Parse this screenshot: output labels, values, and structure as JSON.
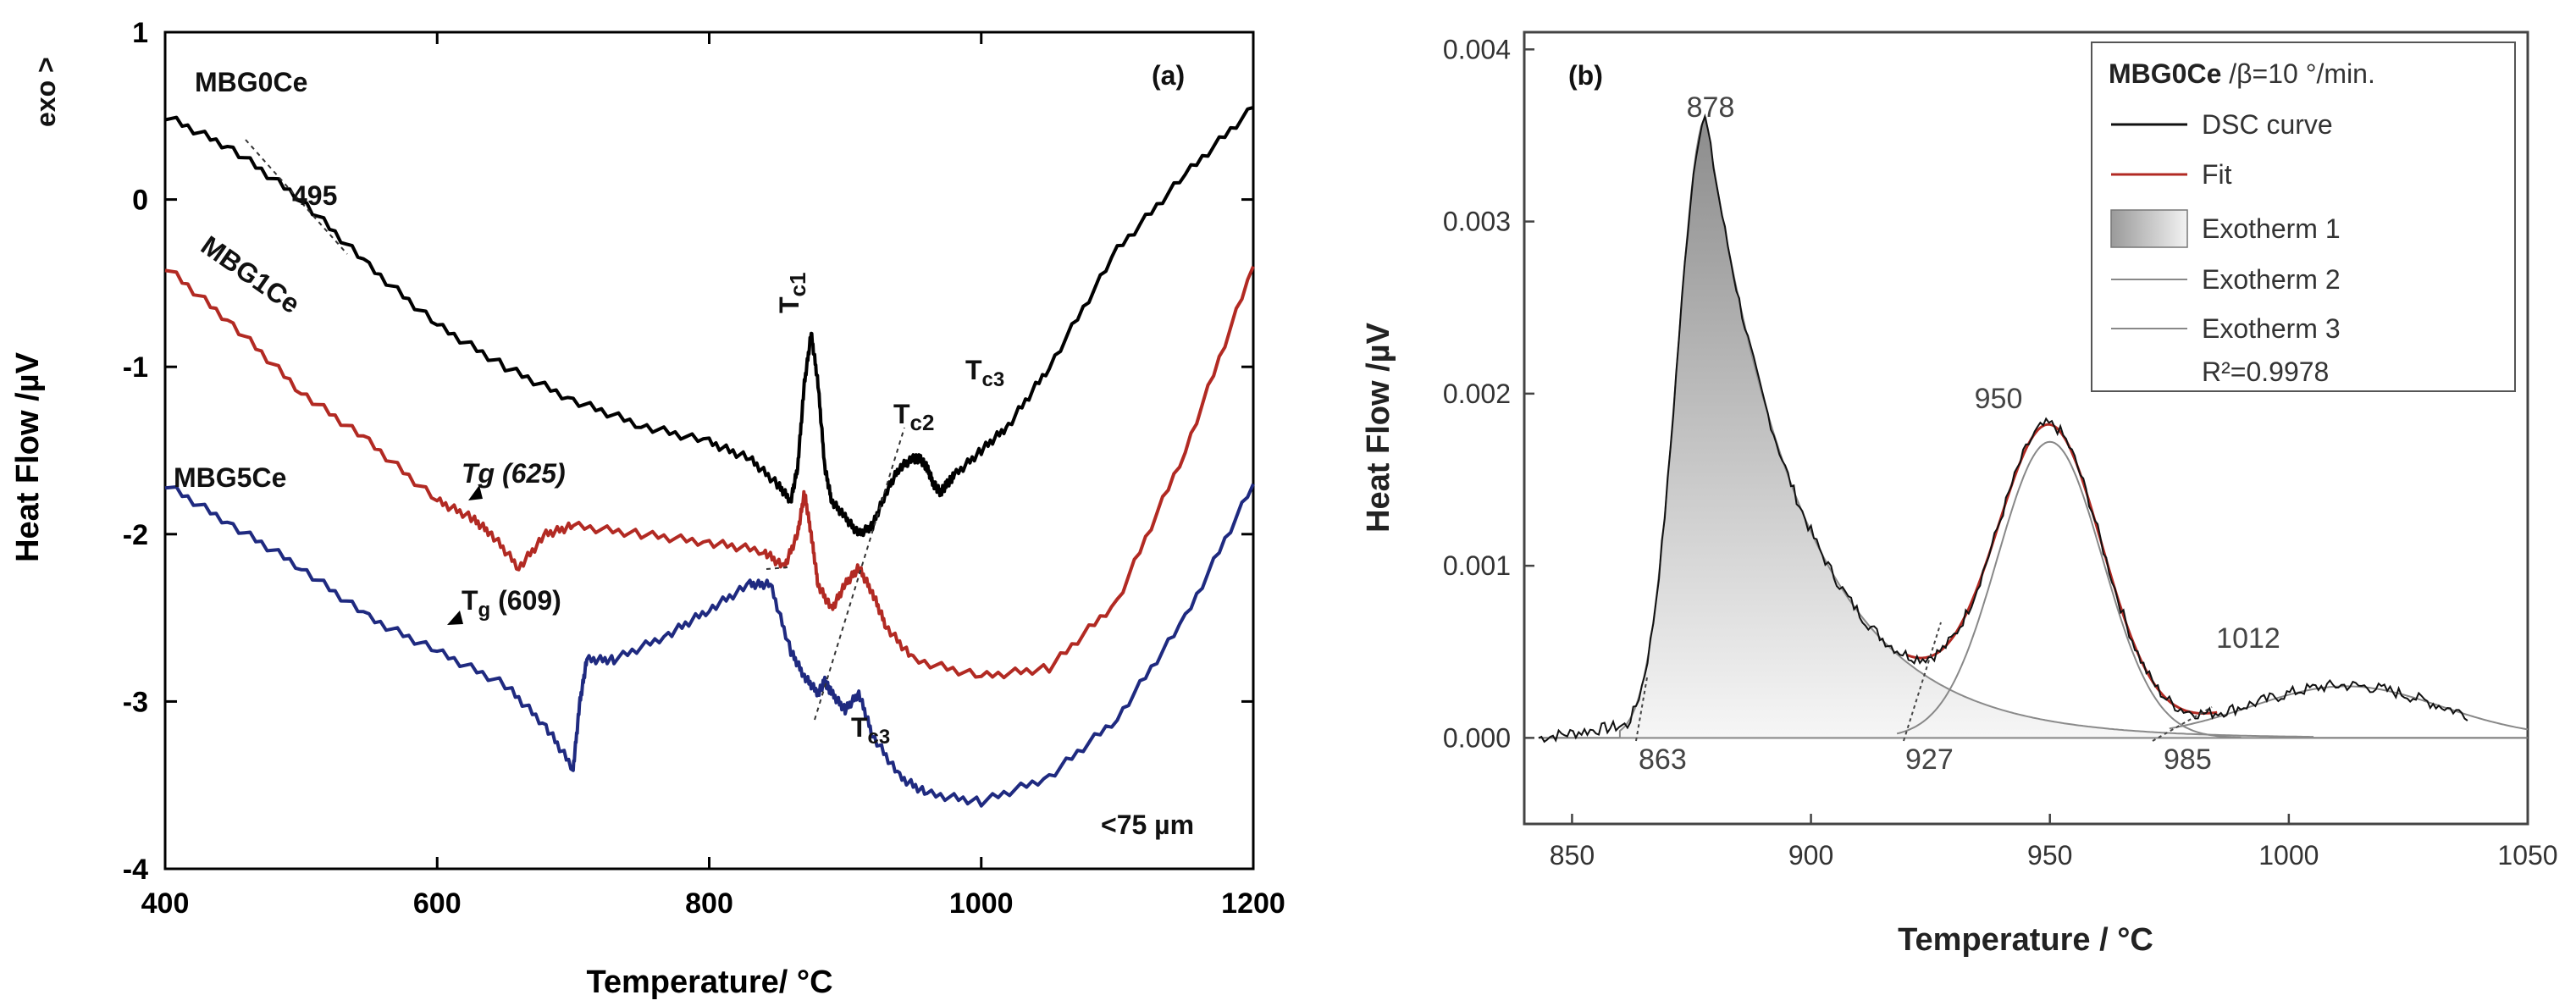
{
  "chart_data": [
    {
      "panel": "(a)",
      "type": "line",
      "title": "",
      "xlabel": "Temperature/ °C",
      "ylabel": "Heat Flow /µV",
      "exo_label": "exo >",
      "xlim": [
        400,
        1200
      ],
      "ylim": [
        -4,
        1
      ],
      "xticks": [
        400,
        600,
        800,
        1000,
        1200
      ],
      "yticks": [
        -4,
        -3,
        -2,
        -1,
        0,
        1
      ],
      "size_note": "<75 µm",
      "series": [
        {
          "name": "MBG0Ce",
          "color": "#000000",
          "x": [
            400,
            450,
            500,
            550,
            600,
            650,
            700,
            750,
            800,
            830,
            850,
            860,
            865,
            870,
            875,
            880,
            885,
            890,
            900,
            910,
            920,
            930,
            940,
            950,
            955,
            960,
            965,
            970,
            975,
            980,
            1000,
            1020,
            1050,
            1100,
            1150,
            1200
          ],
          "values": [
            0.5,
            0.3,
            0.0,
            -0.4,
            -0.75,
            -1.0,
            -1.2,
            -1.35,
            -1.45,
            -1.55,
            -1.7,
            -1.8,
            -1.6,
            -1.1,
            -0.8,
            -1.1,
            -1.6,
            -1.8,
            -1.9,
            -2.0,
            -1.95,
            -1.75,
            -1.6,
            -1.55,
            -1.55,
            -1.6,
            -1.7,
            -1.75,
            -1.7,
            -1.65,
            -1.5,
            -1.35,
            -1.0,
            -0.3,
            0.15,
            0.55
          ]
        },
        {
          "name": "MBG1Ce",
          "color": "#b22a23",
          "x": [
            400,
            450,
            500,
            550,
            600,
            625,
            640,
            660,
            680,
            700,
            750,
            800,
            840,
            855,
            865,
            870,
            875,
            880,
            890,
            900,
            910,
            920,
            930,
            950,
            1000,
            1050,
            1100,
            1150,
            1200
          ],
          "values": [
            -0.4,
            -0.75,
            -1.15,
            -1.45,
            -1.8,
            -1.9,
            -2.0,
            -2.2,
            -2.0,
            -1.95,
            -2.0,
            -2.05,
            -2.1,
            -2.2,
            -2.0,
            -1.75,
            -2.0,
            -2.3,
            -2.45,
            -2.3,
            -2.2,
            -2.35,
            -2.55,
            -2.75,
            -2.85,
            -2.8,
            -2.4,
            -1.5,
            -0.4
          ]
        },
        {
          "name": "MBG5Ce",
          "color": "#1f2a80",
          "x": [
            400,
            450,
            500,
            550,
            600,
            650,
            680,
            700,
            705,
            710,
            730,
            770,
            800,
            830,
            845,
            860,
            870,
            880,
            885,
            890,
            900,
            910,
            920,
            940,
            960,
            1000,
            1050,
            1100,
            1150,
            1200
          ],
          "values": [
            -1.7,
            -1.95,
            -2.2,
            -2.5,
            -2.7,
            -2.9,
            -3.15,
            -3.4,
            -3.0,
            -2.75,
            -2.75,
            -2.6,
            -2.45,
            -2.3,
            -2.3,
            -2.7,
            -2.85,
            -2.95,
            -2.88,
            -2.95,
            -3.05,
            -2.95,
            -3.2,
            -3.45,
            -3.55,
            -3.6,
            -3.45,
            -3.1,
            -2.5,
            -1.7
          ]
        }
      ],
      "annotations": [
        {
          "text": "495",
          "x": 520,
          "y": 0.0
        },
        {
          "text": "Tg (625)",
          "x": 625,
          "y": -1.55
        },
        {
          "text": "T",
          "sub": "g",
          "tail": " (609)",
          "x": 609,
          "y": -2.35
        },
        {
          "text": "T",
          "sub": "c1",
          "x": 875,
          "y": -0.3
        },
        {
          "text": "T",
          "sub": "c2",
          "x": 950,
          "y": -1.25
        },
        {
          "text": "T",
          "sub": "c3",
          "x": 1015,
          "y": -1.05
        },
        {
          "text": "T",
          "sub": "c3",
          "x": 905,
          "y": -3.15
        }
      ]
    },
    {
      "panel": "(b)",
      "type": "line",
      "title": "",
      "xlabel": "Temperature / °C",
      "ylabel": "Heat Flow /µV",
      "xlim": [
        840,
        1050
      ],
      "ylim": [
        -0.0005,
        0.0041
      ],
      "xticks": [
        850,
        900,
        950,
        1000,
        1050
      ],
      "yticks": [
        0.0,
        0.001,
        0.002,
        0.003,
        0.004
      ],
      "ytick_labels": [
        "0.000",
        "0.001",
        "0.002",
        "0.003",
        "0.004"
      ],
      "legend": {
        "title": "MBG0Ce",
        "title_suffix": " /β=10 °/min.",
        "entries": [
          "DSC curve",
          "Fit",
          "Exotherm 1",
          "Exotherm 2",
          "Exotherm 3"
        ],
        "r2": "R²=0.9978",
        "position": "top-right"
      },
      "peaks": [
        {
          "label": "878",
          "center": 878,
          "height": 0.0036
        },
        {
          "label": "950",
          "center": 950,
          "height": 0.00172
        },
        {
          "label": "1012",
          "center": 1012,
          "height": 0.0003
        }
      ],
      "onsets": [
        "863",
        "927",
        "985"
      ]
    }
  ]
}
